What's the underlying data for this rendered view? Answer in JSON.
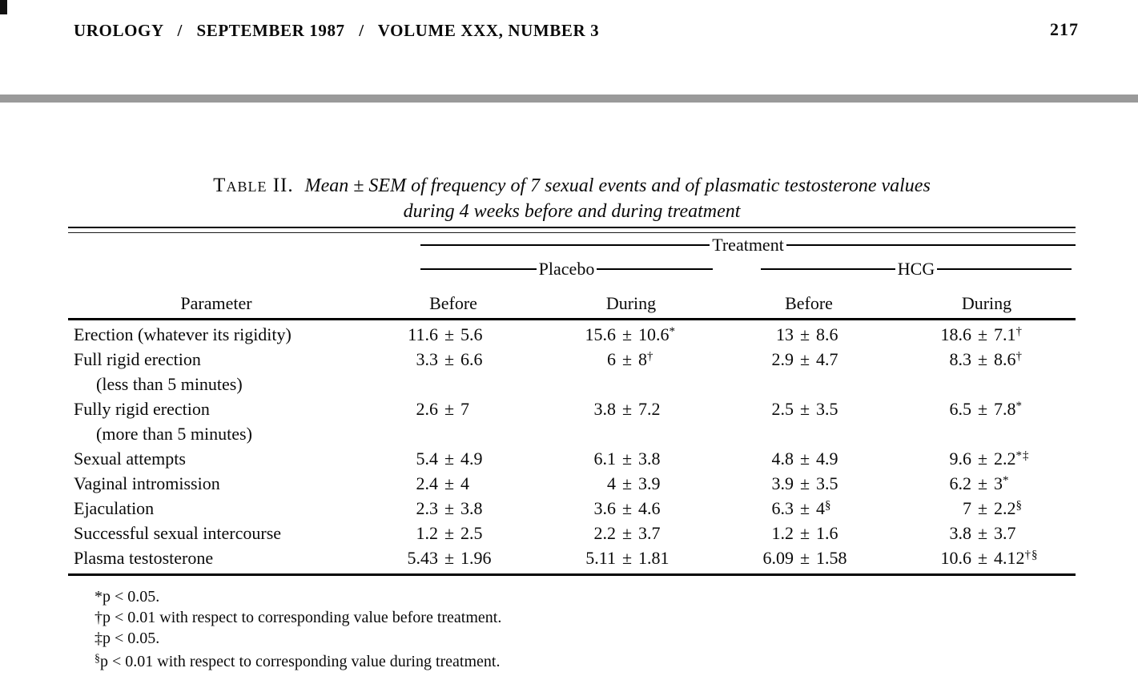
{
  "header": {
    "journal_line": "UROLOGY   /   SEPTEMBER 1987   /   VOLUME XXX, NUMBER 3",
    "page_number": "217"
  },
  "table": {
    "label": "Table II.",
    "caption_line1": "Mean ± SEM of frequency of 7 sexual events and of plasmatic testosterone values",
    "caption_line2": "during 4 weeks before and during treatment",
    "group_top": "Treatment",
    "groups": [
      "Placebo",
      "HCG"
    ],
    "col_headers": [
      "Parameter",
      "Before",
      "During",
      "Before",
      "During"
    ],
    "pm": "±",
    "rows": [
      {
        "param": "Erection (whatever its rigidity)",
        "param2": "",
        "cells": [
          {
            "mean": "11.6",
            "sd": "5.6",
            "mark": ""
          },
          {
            "mean": "15.6",
            "sd": "10.6",
            "mark": "*"
          },
          {
            "mean": "13",
            "sd": "8.6",
            "mark": ""
          },
          {
            "mean": "18.6",
            "sd": "7.1",
            "mark": "†"
          }
        ]
      },
      {
        "param": "Full rigid erection",
        "param2": "(less than 5 minutes)",
        "cells": [
          {
            "mean": "3.3",
            "sd": "6.6",
            "mark": ""
          },
          {
            "mean": "6",
            "sd": "8",
            "mark": "†"
          },
          {
            "mean": "2.9",
            "sd": "4.7",
            "mark": ""
          },
          {
            "mean": "8.3",
            "sd": "8.6",
            "mark": "†"
          }
        ]
      },
      {
        "param": "Fully rigid erection",
        "param2": "(more than 5 minutes)",
        "cells": [
          {
            "mean": "2.6",
            "sd": "7",
            "mark": ""
          },
          {
            "mean": "3.8",
            "sd": "7.2",
            "mark": ""
          },
          {
            "mean": "2.5",
            "sd": "3.5",
            "mark": ""
          },
          {
            "mean": "6.5",
            "sd": "7.8",
            "mark": "*"
          }
        ]
      },
      {
        "param": "Sexual attempts",
        "param2": "",
        "cells": [
          {
            "mean": "5.4",
            "sd": "4.9",
            "mark": ""
          },
          {
            "mean": "6.1",
            "sd": "3.8",
            "mark": ""
          },
          {
            "mean": "4.8",
            "sd": "4.9",
            "mark": ""
          },
          {
            "mean": "9.6",
            "sd": "2.2",
            "mark": "*‡"
          }
        ]
      },
      {
        "param": "Vaginal intromission",
        "param2": "",
        "cells": [
          {
            "mean": "2.4",
            "sd": "4",
            "mark": ""
          },
          {
            "mean": "4",
            "sd": "3.9",
            "mark": ""
          },
          {
            "mean": "3.9",
            "sd": "3.5",
            "mark": ""
          },
          {
            "mean": "6.2",
            "sd": "3",
            "mark": "*"
          }
        ]
      },
      {
        "param": "Ejaculation",
        "param2": "",
        "cells": [
          {
            "mean": "2.3",
            "sd": "3.8",
            "mark": ""
          },
          {
            "mean": "3.6",
            "sd": "4.6",
            "mark": ""
          },
          {
            "mean": "6.3",
            "sd": "4",
            "mark": "§"
          },
          {
            "mean": "7",
            "sd": "2.2",
            "mark": "§"
          }
        ]
      },
      {
        "param": "Successful sexual intercourse",
        "param2": "",
        "cells": [
          {
            "mean": "1.2",
            "sd": "2.5",
            "mark": ""
          },
          {
            "mean": "2.2",
            "sd": "3.7",
            "mark": ""
          },
          {
            "mean": "1.2",
            "sd": "1.6",
            "mark": ""
          },
          {
            "mean": "3.8",
            "sd": "3.7",
            "mark": ""
          }
        ]
      },
      {
        "param": "Plasma testosterone",
        "param2": "",
        "cells": [
          {
            "mean": "5.43",
            "sd": "1.96",
            "mark": ""
          },
          {
            "mean": "5.11",
            "sd": "1.81",
            "mark": ""
          },
          {
            "mean": "6.09",
            "sd": "1.58",
            "mark": ""
          },
          {
            "mean": "10.6",
            "sd": "4.12",
            "mark": "†§"
          }
        ]
      }
    ],
    "footnotes": [
      {
        "mark": "*",
        "text": "p < 0.05."
      },
      {
        "mark": "†",
        "text": "p < 0.01 with respect to corresponding value before treatment."
      },
      {
        "mark": "‡",
        "text": "p < 0.05."
      },
      {
        "mark": "§",
        "text": "p < 0.01 with respect to corresponding value during treatment."
      }
    ]
  }
}
